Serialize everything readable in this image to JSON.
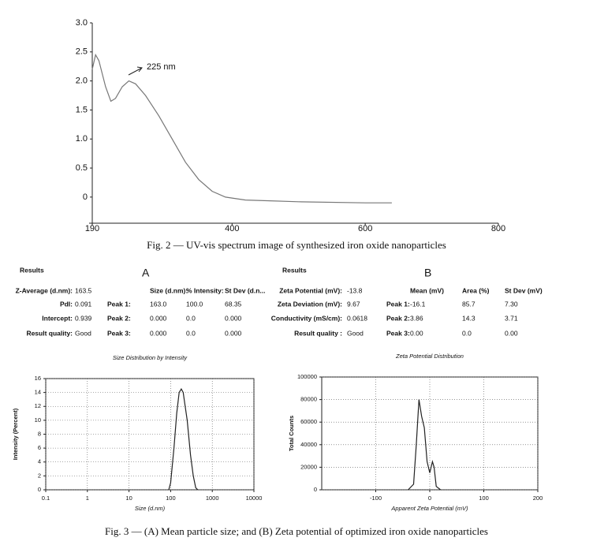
{
  "chart_data": [
    {
      "type": "line",
      "x": [
        190,
        195,
        200,
        210,
        218,
        225,
        235,
        245,
        255,
        270,
        290,
        310,
        330,
        350,
        370,
        390,
        420,
        500,
        600,
        640
      ],
      "series": [
        {
          "color": "#777777",
          "values": [
            2.2,
            2.45,
            2.35,
            1.9,
            1.65,
            1.7,
            1.9,
            2.0,
            1.95,
            1.75,
            1.4,
            1.0,
            0.6,
            0.3,
            0.1,
            0.0,
            -0.05,
            -0.08,
            -0.1,
            -0.1
          ]
        }
      ],
      "annotation": "225 nm",
      "xlim": [
        190,
        800
      ],
      "xticks": [
        190,
        400,
        600,
        800
      ],
      "ylim": [
        -0.45,
        3.0
      ],
      "yticks": [
        0,
        0.5,
        {
          "value": 1,
          "label": "1.0"
        },
        1.5,
        {
          "value": 2,
          "label": "2.0"
        },
        2.5,
        {
          "value": 3,
          "label": "3.0"
        }
      ],
      "grid": false,
      "log_x": false
    },
    {
      "type": "line",
      "title": "Size Distribution by Intensity",
      "x_label": "Size (d.nm)",
      "y_label": "Intensity (Percent)",
      "x": [
        90,
        100,
        120,
        140,
        160,
        180,
        200,
        250,
        300,
        350,
        400,
        450
      ],
      "series": [
        {
          "color": "#222222",
          "values": [
            0,
            1,
            6,
            11,
            14,
            14.5,
            14,
            10,
            5,
            2,
            0.3,
            0
          ]
        }
      ],
      "xlim": [
        0.1,
        10000
      ],
      "xticks": [
        0.1,
        1,
        10,
        100,
        1000,
        10000
      ],
      "ylim": [
        0,
        16
      ],
      "yticks": [
        0,
        2,
        4,
        6,
        8,
        10,
        12,
        14,
        16
      ],
      "grid": true,
      "log_x": true
    },
    {
      "type": "line",
      "title": "Zeta Potential Distribution",
      "x_label": "Apparent Zeta Potential (mV)",
      "y_label": "Total Counts",
      "x": [
        -40,
        -30,
        -25,
        -20,
        -15,
        -10,
        -5,
        0,
        5,
        8,
        12,
        20
      ],
      "series": [
        {
          "color": "#222222",
          "values": [
            0,
            5000,
            40000,
            80000,
            65000,
            55000,
            25000,
            15000,
            25000,
            20000,
            3000,
            0
          ]
        }
      ],
      "xlim": [
        -200,
        200
      ],
      "xticks": [
        -100,
        0,
        100,
        200
      ],
      "ylim": [
        0,
        100000
      ],
      "yticks": [
        0,
        20000,
        40000,
        60000,
        80000,
        100000
      ],
      "grid": true,
      "log_x": false
    }
  ],
  "fig2_caption": "Fig. 2 — UV-vis spectrum image of synthesized iron oxide nanoparticles",
  "panel_a": {
    "heading": "Results",
    "label": "A",
    "summary": [
      [
        "Z-Average (d.nm):",
        "163.5"
      ],
      [
        "PdI:",
        "0.091"
      ],
      [
        "Intercept:",
        "0.939"
      ],
      [
        "Result quality:",
        "Good"
      ]
    ],
    "peak_header": [
      "Size (d.nm):",
      "% Intensity:",
      "St Dev (d.n..."
    ],
    "peaks": [
      [
        "Peak 1:",
        "163.0",
        "100.0",
        "68.35"
      ],
      [
        "Peak 2:",
        "0.000",
        "0.0",
        "0.000"
      ],
      [
        "Peak 3:",
        "0.000",
        "0.0",
        "0.000"
      ]
    ]
  },
  "panel_b": {
    "heading": "Results",
    "label": "B",
    "summary": [
      [
        "Zeta Potential (mV):",
        "-13.8"
      ],
      [
        "Zeta Deviation (mV):",
        "9.67"
      ],
      [
        "Conductivity (mS/cm):",
        "0.0618"
      ],
      [
        "Result quality :",
        "Good"
      ]
    ],
    "peak_header": [
      "Mean (mV)",
      "Area (%)",
      "St Dev (mV)"
    ],
    "peaks": [
      [
        "Peak 1:",
        "-16.1",
        "85.7",
        "7.30"
      ],
      [
        "Peak 2:",
        "3.86",
        "14.3",
        "3.71"
      ],
      [
        "Peak 3:",
        "0.00",
        "0.0",
        "0.00"
      ]
    ]
  },
  "fig3_caption": "Fig. 3 — (A) Mean particle size; and (B) Zeta potential of optimized iron oxide nanoparticles"
}
